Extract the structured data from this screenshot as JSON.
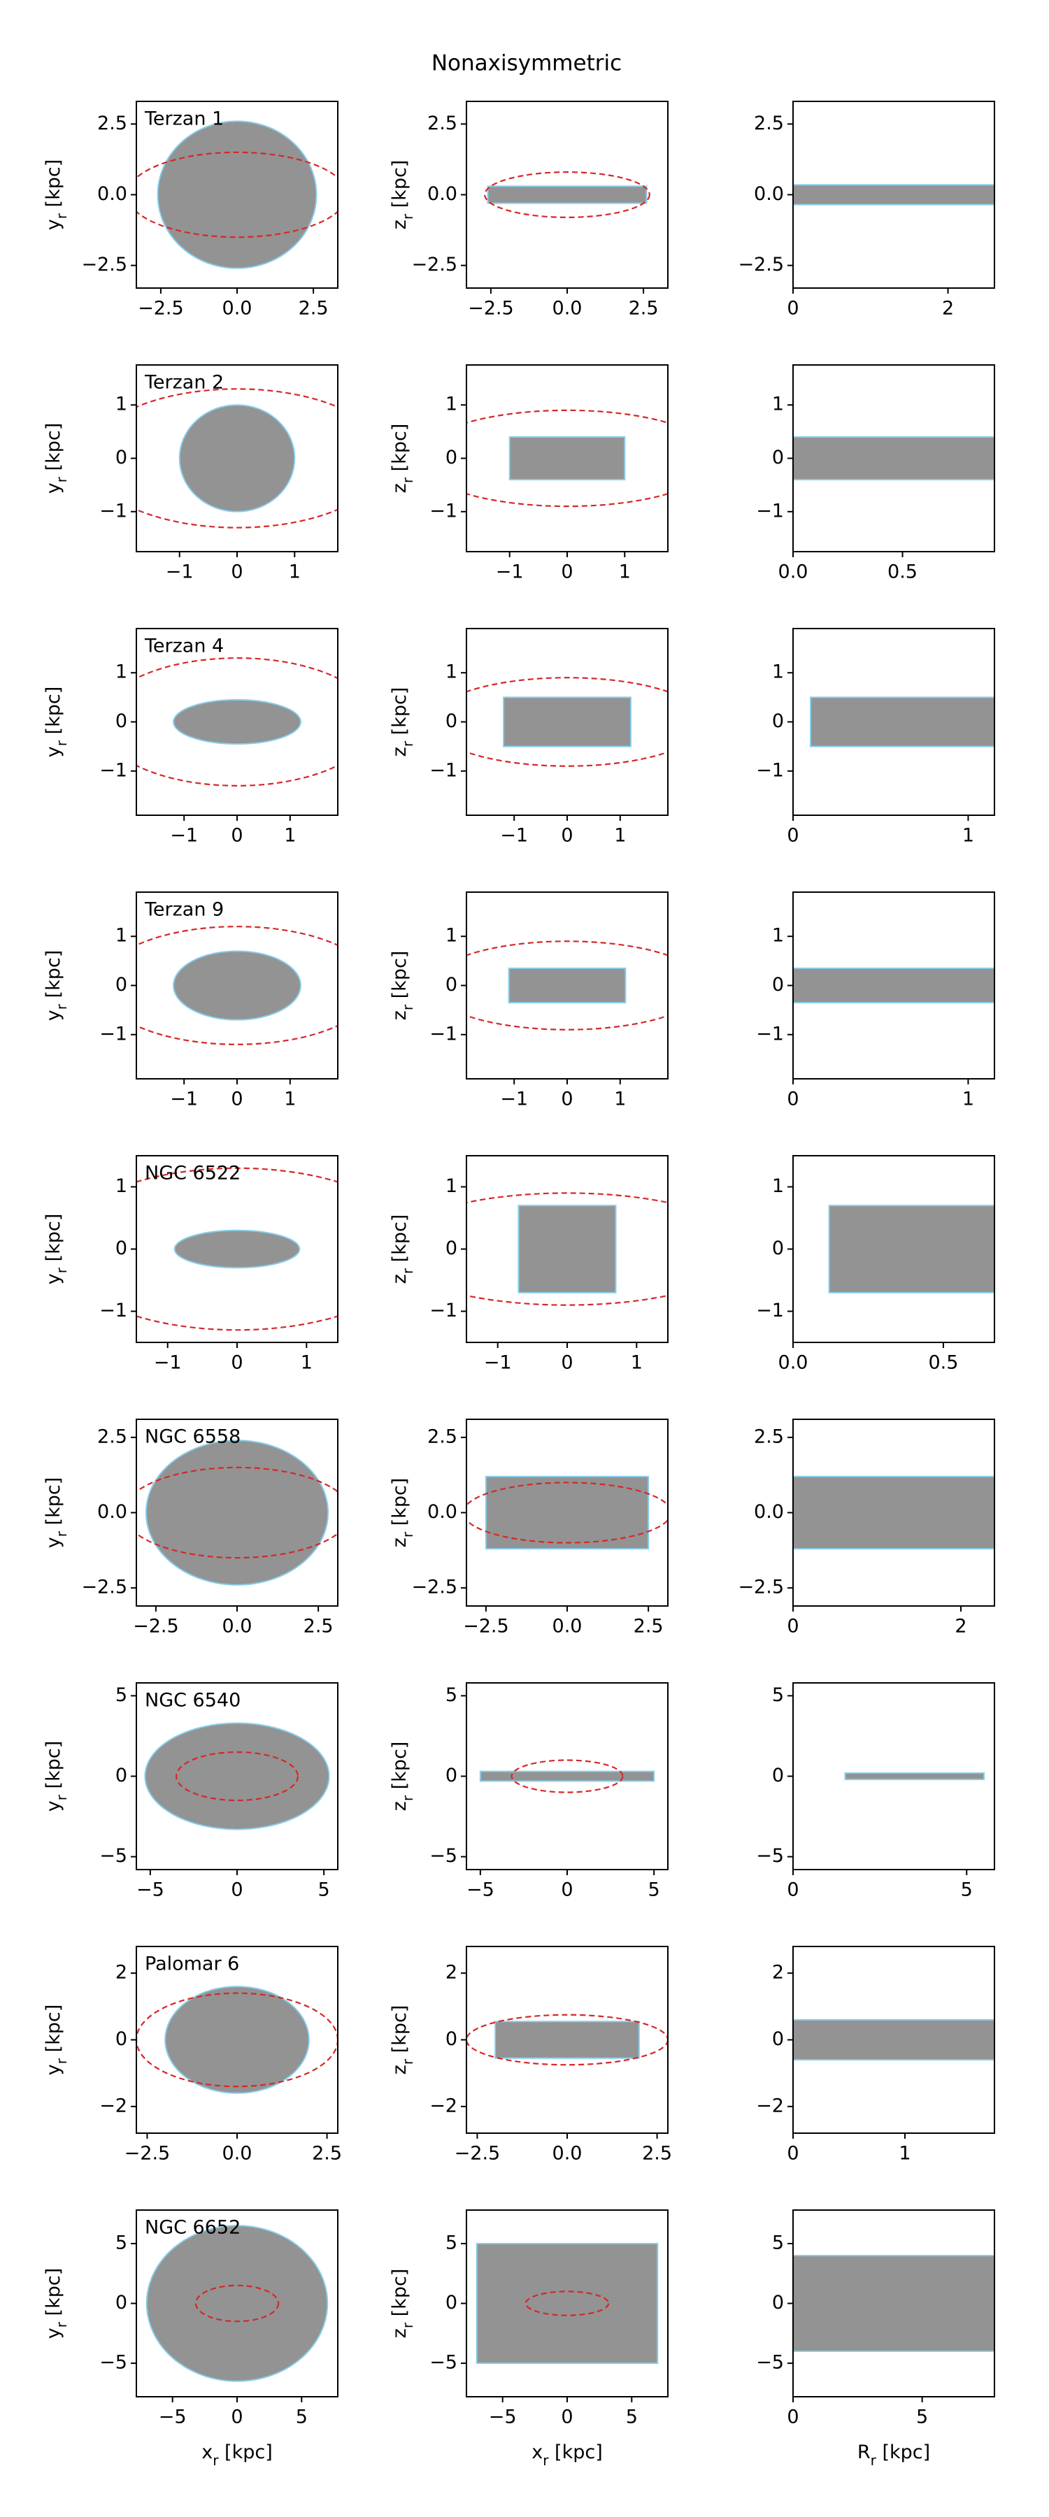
{
  "title": "Nonaxisymmetric",
  "chart_data": [
    {
      "type": "orbit",
      "label": "Terzan 1",
      "ylabel": "yr [kpc]",
      "xlim": [
        -3.3,
        3.3
      ],
      "ylim": [
        -3.3,
        3.3
      ],
      "xticks": [
        {
          "value": -2.5,
          "label": "−2.5"
        },
        {
          "value": 0,
          "label": "0.0"
        },
        2.5
      ],
      "yticks": [
        {
          "value": -2.5,
          "label": "−2.5"
        },
        {
          "value": 0,
          "label": "0.0"
        },
        2.5
      ],
      "orbit_x": [
        -2.6,
        2.6
      ],
      "orbit_y": [
        -2.6,
        2.6
      ],
      "boundary": [
        3.6,
        1.5
      ]
    },
    {
      "type": "orbit",
      "ylabel": "zr [kpc]",
      "xlim": [
        -3.3,
        3.3
      ],
      "ylim": [
        -3.3,
        3.3
      ],
      "xticks": [
        {
          "value": -2.5,
          "label": "−2.5"
        },
        {
          "value": 0,
          "label": "0.0"
        },
        2.5
      ],
      "yticks": [
        {
          "value": -2.5,
          "label": "−2.5"
        },
        {
          "value": 0,
          "label": "0.0"
        },
        2.5
      ],
      "orbit_x": [
        -2.6,
        2.6
      ],
      "orbit_y": [
        -0.3,
        0.3
      ],
      "boundary": [
        2.7,
        0.8
      ]
    },
    {
      "type": "orbit",
      "xlim": [
        0,
        2.6
      ],
      "ylim": [
        -3.3,
        3.3
      ],
      "xticks": [
        0,
        2
      ],
      "yticks": [
        {
          "value": -2.5,
          "label": "−2.5"
        },
        {
          "value": 0,
          "label": "0.0"
        },
        2.5
      ],
      "orbit_x": [
        0,
        2.6
      ],
      "orbit_y": [
        -0.35,
        0.35
      ]
    },
    {
      "type": "orbit",
      "label": "Terzan 2",
      "ylabel": "yr [kpc]",
      "xlim": [
        -1.75,
        1.75
      ],
      "ylim": [
        -1.75,
        1.75
      ],
      "xticks": [
        {
          "value": -1,
          "label": "−1"
        },
        0,
        1
      ],
      "yticks": [
        {
          "value": -1,
          "label": "−1"
        },
        0,
        1
      ],
      "orbit_x": [
        -1,
        1
      ],
      "orbit_y": [
        -1,
        1
      ],
      "boundary": [
        2.6,
        1.3
      ]
    },
    {
      "type": "orbit",
      "ylabel": "zr [kpc]",
      "xlim": [
        -1.75,
        1.75
      ],
      "ylim": [
        -1.75,
        1.75
      ],
      "xticks": [
        {
          "value": -1,
          "label": "−1"
        },
        0,
        1
      ],
      "yticks": [
        {
          "value": -1,
          "label": "−1"
        },
        0,
        1
      ],
      "orbit_x": [
        -1,
        1
      ],
      "orbit_y": [
        -0.4,
        0.4
      ],
      "boundary": [
        2.6,
        0.9
      ]
    },
    {
      "type": "orbit",
      "xlim": [
        0,
        0.92
      ],
      "ylim": [
        -1.75,
        1.75
      ],
      "xticks": [
        {
          "value": 0,
          "label": "0.0"
        },
        0.5
      ],
      "yticks": [
        {
          "value": -1,
          "label": "−1"
        },
        0,
        1
      ],
      "orbit_x": [
        0,
        0.92
      ],
      "orbit_y": [
        -0.4,
        0.4
      ]
    },
    {
      "type": "orbit",
      "label": "Terzan 4",
      "ylabel": "yr [kpc]",
      "xlim": [
        -1.9,
        1.9
      ],
      "ylim": [
        -1.9,
        1.9
      ],
      "xticks": [
        {
          "value": -1,
          "label": "−1"
        },
        0,
        1
      ],
      "yticks": [
        {
          "value": -1,
          "label": "−1"
        },
        0,
        1
      ],
      "orbit_x": [
        -1.2,
        1.2
      ],
      "orbit_y": [
        -0.45,
        0.45
      ],
      "boundary": [
        2.6,
        1.3
      ]
    },
    {
      "type": "orbit",
      "ylabel": "zr [kpc]",
      "xlim": [
        -1.9,
        1.9
      ],
      "ylim": [
        -1.9,
        1.9
      ],
      "xticks": [
        {
          "value": -1,
          "label": "−1"
        },
        0,
        1
      ],
      "yticks": [
        {
          "value": -1,
          "label": "−1"
        },
        0,
        1
      ],
      "orbit_x": [
        -1.2,
        1.2
      ],
      "orbit_y": [
        -0.5,
        0.5
      ],
      "boundary": [
        2.6,
        0.9
      ]
    },
    {
      "type": "orbit",
      "xlim": [
        0,
        1.15
      ],
      "ylim": [
        -1.9,
        1.9
      ],
      "xticks": [
        0,
        1
      ],
      "yticks": [
        {
          "value": -1,
          "label": "−1"
        },
        0,
        1
      ],
      "orbit_x": [
        0.1,
        1.15
      ],
      "orbit_y": [
        -0.5,
        0.5
      ]
    },
    {
      "type": "orbit",
      "label": "Terzan 9",
      "ylabel": "yr [kpc]",
      "xlim": [
        -1.9,
        1.9
      ],
      "ylim": [
        -1.9,
        1.9
      ],
      "xticks": [
        {
          "value": -1,
          "label": "−1"
        },
        0,
        1
      ],
      "yticks": [
        {
          "value": -1,
          "label": "−1"
        },
        0,
        1
      ],
      "orbit_x": [
        -1.2,
        1.2
      ],
      "orbit_y": [
        -0.7,
        0.7
      ],
      "boundary": [
        2.6,
        1.2
      ]
    },
    {
      "type": "orbit",
      "ylabel": "zr [kpc]",
      "xlim": [
        -1.9,
        1.9
      ],
      "ylim": [
        -1.9,
        1.9
      ],
      "xticks": [
        {
          "value": -1,
          "label": "−1"
        },
        0,
        1
      ],
      "yticks": [
        {
          "value": -1,
          "label": "−1"
        },
        0,
        1
      ],
      "orbit_x": [
        -1.1,
        1.1
      ],
      "orbit_y": [
        -0.35,
        0.35
      ],
      "boundary": [
        2.6,
        0.9
      ]
    },
    {
      "type": "orbit",
      "xlim": [
        0,
        1.15
      ],
      "ylim": [
        -1.9,
        1.9
      ],
      "xticks": [
        0,
        1
      ],
      "yticks": [
        {
          "value": -1,
          "label": "−1"
        },
        0,
        1
      ],
      "orbit_x": [
        0,
        1.15
      ],
      "orbit_y": [
        -0.35,
        0.35
      ]
    },
    {
      "type": "orbit",
      "label": "NGC 6522",
      "ylabel": "yr [kpc]",
      "xlim": [
        -1.45,
        1.45
      ],
      "ylim": [
        -1.5,
        1.5
      ],
      "xticks": [
        {
          "value": -1,
          "label": "−1"
        },
        0,
        1
      ],
      "yticks": [
        {
          "value": -1,
          "label": "−1"
        },
        0,
        1
      ],
      "orbit_x": [
        -0.9,
        0.9
      ],
      "orbit_y": [
        -0.3,
        0.3
      ],
      "boundary": [
        2.6,
        1.3
      ]
    },
    {
      "type": "orbit",
      "ylabel": "zr [kpc]",
      "xlim": [
        -1.45,
        1.45
      ],
      "ylim": [
        -1.5,
        1.5
      ],
      "xticks": [
        {
          "value": -1,
          "label": "−1"
        },
        0,
        1
      ],
      "yticks": [
        {
          "value": -1,
          "label": "−1"
        },
        0,
        1
      ],
      "orbit_x": [
        -0.7,
        0.7
      ],
      "orbit_y": [
        -0.7,
        0.7
      ],
      "boundary": [
        2.6,
        0.9
      ]
    },
    {
      "type": "orbit",
      "xlim": [
        0,
        0.67
      ],
      "ylim": [
        -1.5,
        1.5
      ],
      "xticks": [
        {
          "value": 0,
          "label": "0.0"
        },
        0.5
      ],
      "yticks": [
        {
          "value": -1,
          "label": "−1"
        },
        0,
        1
      ],
      "orbit_x": [
        0.12,
        0.67
      ],
      "orbit_y": [
        -0.7,
        0.7
      ]
    },
    {
      "type": "orbit",
      "label": "NGC 6558",
      "ylabel": "yr [kpc]",
      "xlim": [
        -3.1,
        3.1
      ],
      "ylim": [
        -3.1,
        3.1
      ],
      "xticks": [
        {
          "value": -2.5,
          "label": "−2.5"
        },
        {
          "value": 0,
          "label": "0.0"
        },
        2.5
      ],
      "yticks": [
        {
          "value": -2.5,
          "label": "−2.5"
        },
        {
          "value": 0,
          "label": "0.0"
        },
        2.5
      ],
      "orbit_x": [
        -2.8,
        2.8
      ],
      "orbit_y": [
        -2.4,
        2.4
      ],
      "boundary": [
        3.5,
        1.5
      ]
    },
    {
      "type": "orbit",
      "ylabel": "zr [kpc]",
      "xlim": [
        -3.1,
        3.1
      ],
      "ylim": [
        -3.1,
        3.1
      ],
      "xticks": [
        {
          "value": -2.5,
          "label": "−2.5"
        },
        {
          "value": 0,
          "label": "0.0"
        },
        2.5
      ],
      "yticks": [
        {
          "value": -2.5,
          "label": "−2.5"
        },
        {
          "value": 0,
          "label": "0.0"
        },
        2.5
      ],
      "orbit_x": [
        -2.5,
        2.5
      ],
      "orbit_y": [
        -1.2,
        1.2
      ],
      "boundary": [
        3.2,
        1
      ]
    },
    {
      "type": "orbit",
      "xlim": [
        0,
        2.4
      ],
      "ylim": [
        -3.1,
        3.1
      ],
      "xticks": [
        0,
        2
      ],
      "yticks": [
        {
          "value": -2.5,
          "label": "−2.5"
        },
        {
          "value": 0,
          "label": "0.0"
        },
        2.5
      ],
      "orbit_x": [
        0,
        2.4
      ],
      "orbit_y": [
        -1.2,
        1.2
      ]
    },
    {
      "type": "orbit",
      "label": "NGC 6540",
      "ylabel": "yr [kpc]",
      "xlim": [
        -5.8,
        5.8
      ],
      "ylim": [
        -5.8,
        5.8
      ],
      "xticks": [
        {
          "value": -5,
          "label": "−5"
        },
        0,
        5
      ],
      "yticks": [
        {
          "value": -5,
          "label": "−5"
        },
        0,
        5
      ],
      "orbit_x": [
        -5.3,
        5.3
      ],
      "orbit_y": [
        -3.3,
        3.3
      ],
      "boundary": [
        3.5,
        1.5
      ]
    },
    {
      "type": "orbit",
      "ylabel": "zr [kpc]",
      "xlim": [
        -5.8,
        5.8
      ],
      "ylim": [
        -5.8,
        5.8
      ],
      "xticks": [
        {
          "value": -5,
          "label": "−5"
        },
        0,
        5
      ],
      "yticks": [
        {
          "value": -5,
          "label": "−5"
        },
        0,
        5
      ],
      "orbit_x": [
        -5,
        5
      ],
      "orbit_y": [
        -0.3,
        0.3
      ],
      "boundary": [
        3.2,
        1
      ]
    },
    {
      "type": "orbit",
      "xlim": [
        0,
        5.8
      ],
      "ylim": [
        -5.8,
        5.8
      ],
      "xticks": [
        0,
        5
      ],
      "yticks": [
        {
          "value": -5,
          "label": "−5"
        },
        0,
        5
      ],
      "orbit_x": [
        1.5,
        5.5
      ],
      "orbit_y": [
        -0.2,
        0.2
      ]
    },
    {
      "type": "orbit",
      "label": "Palomar 6",
      "ylabel": "yr [kpc]",
      "xlim": [
        -2.8,
        2.8
      ],
      "ylim": [
        -2.8,
        2.8
      ],
      "xticks": [
        {
          "value": -2.5,
          "label": "−2.5"
        },
        {
          "value": 0,
          "label": "0.0"
        },
        2.5
      ],
      "yticks": [
        {
          "value": -2,
          "label": "−2"
        },
        0,
        2
      ],
      "orbit_x": [
        -2,
        2
      ],
      "orbit_y": [
        -1.6,
        1.6
      ],
      "boundary": [
        2.8,
        1.4
      ]
    },
    {
      "type": "orbit",
      "ylabel": "zr [kpc]",
      "xlim": [
        -2.8,
        2.8
      ],
      "ylim": [
        -2.8,
        2.8
      ],
      "xticks": [
        {
          "value": -2.5,
          "label": "−2.5"
        },
        {
          "value": 0,
          "label": "0.0"
        },
        2.5
      ],
      "yticks": [
        {
          "value": -2,
          "label": "−2"
        },
        0,
        2
      ],
      "orbit_x": [
        -2,
        2
      ],
      "orbit_y": [
        -0.55,
        0.55
      ],
      "boundary": [
        2.8,
        0.75
      ]
    },
    {
      "type": "orbit",
      "xlim": [
        0,
        1.8
      ],
      "ylim": [
        -2.8,
        2.8
      ],
      "xticks": [
        0,
        1
      ],
      "yticks": [
        {
          "value": -2,
          "label": "−2"
        },
        0,
        2
      ],
      "orbit_x": [
        0,
        1.8
      ],
      "orbit_y": [
        -0.6,
        0.6
      ]
    },
    {
      "type": "orbit",
      "label": "NGC 6652",
      "ylabel": "yr [kpc]",
      "xlabel": "xr [kpc]",
      "xlim": [
        -7.8,
        7.8
      ],
      "ylim": [
        -7.8,
        7.8
      ],
      "xticks": [
        {
          "value": -5,
          "label": "−5"
        },
        0,
        5
      ],
      "yticks": [
        {
          "value": -5,
          "label": "−5"
        },
        0,
        5
      ],
      "orbit_x": [
        -7,
        7
      ],
      "orbit_y": [
        -6.5,
        6.5
      ],
      "boundary": [
        3.2,
        1.5
      ]
    },
    {
      "type": "orbit",
      "ylabel": "zr [kpc]",
      "xlabel": "xr [kpc]",
      "xlim": [
        -7.8,
        7.8
      ],
      "ylim": [
        -7.8,
        7.8
      ],
      "xticks": [
        {
          "value": -5,
          "label": "−5"
        },
        0,
        5
      ],
      "yticks": [
        {
          "value": -5,
          "label": "−5"
        },
        0,
        5
      ],
      "orbit_x": [
        -7,
        7
      ],
      "orbit_y": [
        -5,
        5
      ],
      "boundary": [
        3.2,
        1
      ]
    },
    {
      "type": "orbit",
      "xlabel": "Rr [kpc]",
      "xlim": [
        0,
        7.8
      ],
      "ylim": [
        -7.8,
        7.8
      ],
      "xticks": [
        0,
        5
      ],
      "yticks": [
        {
          "value": -5,
          "label": "−5"
        },
        0,
        5
      ],
      "orbit_x": [
        0,
        7.8
      ],
      "orbit_y": [
        -4,
        4
      ]
    }
  ]
}
